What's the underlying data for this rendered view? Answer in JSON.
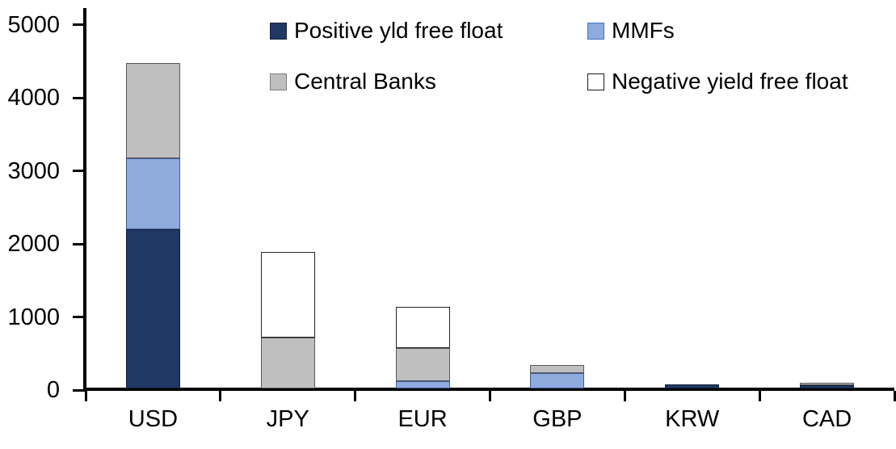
{
  "chart_data": {
    "type": "bar",
    "stacked": true,
    "title": "",
    "xlabel": "",
    "ylabel": "",
    "categories": [
      "USD",
      "JPY",
      "EUR",
      "GBP",
      "KRW",
      "CAD"
    ],
    "series": [
      {
        "name": "Positive yld free float",
        "color": "#1f3864",
        "border": "#111e33",
        "swatch_border": "#15233c",
        "values": [
          2180,
          0,
          0,
          0,
          50,
          40
        ]
      },
      {
        "name": "MMFs",
        "color": "#8faadc",
        "border": "#3c5a96",
        "swatch_border": "#4472c4",
        "values": [
          970,
          0,
          100,
          210,
          0,
          0
        ]
      },
      {
        "name": "Central Banks",
        "color": "#bfbfbf",
        "border": "#595959",
        "swatch_border": "#7f7f7f",
        "values": [
          1300,
          700,
          450,
          110,
          0,
          40
        ]
      },
      {
        "name": "Negative yield free float",
        "color": "#ffffff",
        "border": "#262626",
        "swatch_border": "#1a1a1a",
        "values": [
          0,
          1170,
          570,
          0,
          0,
          0
        ]
      }
    ],
    "totals": [
      4450,
      1870,
      1120,
      320,
      50,
      80
    ],
    "ylim": [
      0,
      5000
    ],
    "ytick_interval": 1000,
    "ytick_labels": [
      "0",
      "1000",
      "2000",
      "3000",
      "4000",
      "5000"
    ],
    "grid": false,
    "legend_position": "top-inside",
    "legend_rows": 2,
    "axis_color": "#000000",
    "background": "#ffffff"
  }
}
